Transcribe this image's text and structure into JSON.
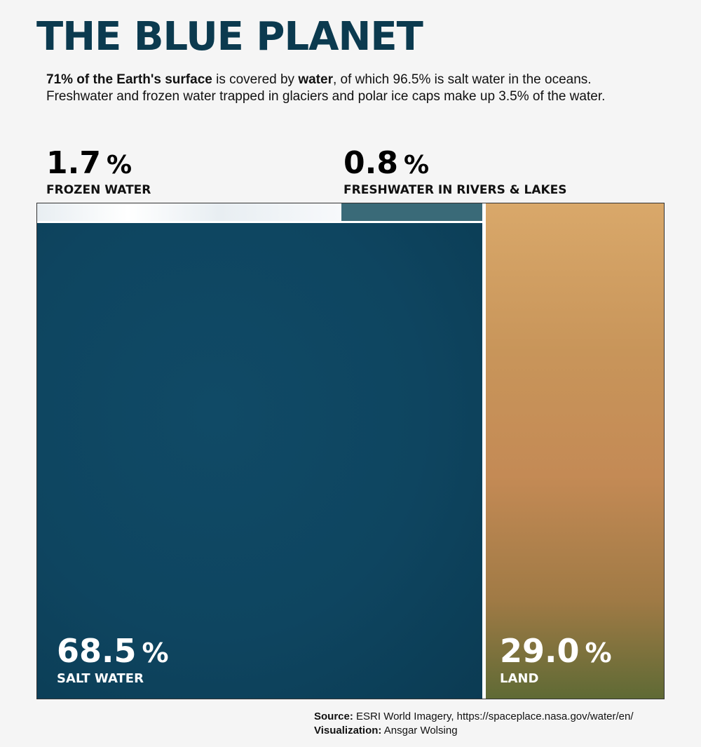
{
  "title": "THE BLUE PLANET",
  "intro": {
    "bold1": "71% of the Earth's surface",
    "text1": " is covered by ",
    "bold2": "water",
    "text2": ", of which 96.5% is salt water in the oceans. Freshwater and frozen water trapped in glaciers and polar ice caps make up 3.5% of the water."
  },
  "colors": {
    "title": "#0b3a4f",
    "salt_water": "#0e4560",
    "frozen_water": "#e8eef2",
    "freshwater": "#3a6a78",
    "land": "#c8955a"
  },
  "chart_data": {
    "type": "treemap",
    "unit": "%",
    "items": [
      {
        "name": "FROZEN WATER",
        "value": 1.7,
        "display": "1.7"
      },
      {
        "name": "FRESHWATER IN RIVERS & LAKES",
        "value": 0.8,
        "display": "0.8"
      },
      {
        "name": "SALT WATER",
        "value": 68.5,
        "display": "68.5"
      },
      {
        "name": "LAND",
        "value": 29.0,
        "display": "29.0"
      }
    ]
  },
  "source": {
    "source_label": "Source:",
    "source_text": " ESRI World Imagery, https://spaceplace.nasa.gov/water/en/",
    "viz_label": "Visualization:",
    "viz_text": " Ansgar Wolsing"
  }
}
